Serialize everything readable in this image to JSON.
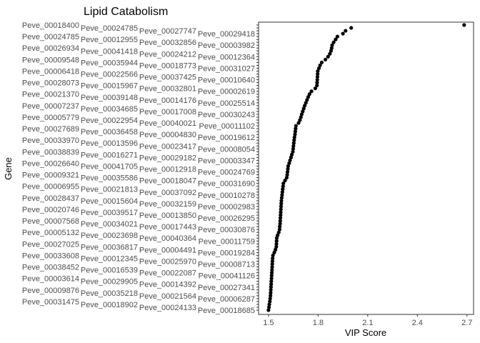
{
  "chart_data": {
    "type": "scatter",
    "title": "Lipid Catabolism",
    "xlabel": "VIP Score",
    "ylabel": "Gene",
    "xlim": [
      1.44,
      2.74
    ],
    "xticks": [
      1.5,
      1.8,
      2.1,
      2.4,
      2.7
    ],
    "xtick_labels": [
      "1.5",
      "1.8",
      "2.1",
      "2.4",
      "2.7"
    ],
    "grid": false,
    "point_color": "#000000",
    "genes": [
      "Peve_00018685",
      "Peve_00024133",
      "Peve_00018902",
      "Peve_00031475",
      "Peve_00006287",
      "Peve_00021564",
      "Peve_00035218",
      "Peve_00009876",
      "Peve_00027341",
      "Peve_00014392",
      "Peve_00029905",
      "Peve_00003614",
      "Peve_00041126",
      "Peve_00022087",
      "Peve_00016539",
      "Peve_00038452",
      "Peve_00008713",
      "Peve_00025970",
      "Peve_00012345",
      "Peve_00033608",
      "Peve_00019284",
      "Peve_00004491",
      "Peve_00036817",
      "Peve_00027025",
      "Peve_00011759",
      "Peve_00040364",
      "Peve_00023698",
      "Peve_00005132",
      "Peve_00030876",
      "Peve_00017443",
      "Peve_00034021",
      "Peve_00007568",
      "Peve_00026295",
      "Peve_00013850",
      "Peve_00039517",
      "Peve_00020746",
      "Peve_00002983",
      "Peve_00032159",
      "Peve_00015604",
      "Peve_00028437",
      "Peve_00010278",
      "Peve_00037092",
      "Peve_00021813",
      "Peve_00006955",
      "Peve_00031690",
      "Peve_00018047",
      "Peve_00035586",
      "Peve_00009321",
      "Peve_00024769",
      "Peve_00012918",
      "Peve_00041705",
      "Peve_00026640",
      "Peve_00003347",
      "Peve_00029182",
      "Peve_00016271",
      "Peve_00038839",
      "Peve_00008054",
      "Peve_00023417",
      "Peve_00013596",
      "Peve_00033970",
      "Peve_00019612",
      "Peve_00004830",
      "Peve_00036458",
      "Peve_00027689",
      "Peve_00011102",
      "Peve_00040021",
      "Peve_00022954",
      "Peve_00005779",
      "Peve_00030243",
      "Peve_00017008",
      "Peve_00034685",
      "Peve_00007237",
      "Peve_00025514",
      "Peve_00014176",
      "Peve_00039148",
      "Peve_00021370",
      "Peve_00002619",
      "Peve_00032801",
      "Peve_00015967",
      "Peve_00028073",
      "Peve_00010640",
      "Peve_00037425",
      "Peve_00022566",
      "Peve_00006418",
      "Peve_00031027",
      "Peve_00018773",
      "Peve_00035944",
      "Peve_00009548",
      "Peve_00012364",
      "Peve_00024212",
      "Peve_00041418",
      "Peve_00026934",
      "Peve_00003982",
      "Peve_00032856",
      "Peve_00012955",
      "Peve_00024785",
      "Peve_00029418",
      "Peve_00027747",
      "Peve_00024785",
      "Peve_00018400"
    ],
    "values": [
      1.5,
      1.503,
      1.505,
      1.508,
      1.51,
      1.512,
      1.513,
      1.514,
      1.515,
      1.516,
      1.517,
      1.518,
      1.519,
      1.52,
      1.521,
      1.522,
      1.523,
      1.524,
      1.525,
      1.527,
      1.535,
      1.542,
      1.547,
      1.548,
      1.549,
      1.55,
      1.555,
      1.562,
      1.567,
      1.568,
      1.57,
      1.571,
      1.572,
      1.573,
      1.574,
      1.575,
      1.576,
      1.577,
      1.578,
      1.58,
      1.582,
      1.584,
      1.586,
      1.588,
      1.59,
      1.6,
      1.61,
      1.613,
      1.615,
      1.617,
      1.619,
      1.625,
      1.63,
      1.636,
      1.641,
      1.647,
      1.649,
      1.651,
      1.653,
      1.655,
      1.657,
      1.66,
      1.662,
      1.664,
      1.666,
      1.682,
      1.69,
      1.696,
      1.701,
      1.707,
      1.713,
      1.719,
      1.726,
      1.733,
      1.74,
      1.748,
      1.76,
      1.783,
      1.793,
      1.794,
      1.795,
      1.796,
      1.797,
      1.798,
      1.805,
      1.812,
      1.822,
      1.844,
      1.86,
      1.871,
      1.878,
      1.882,
      1.885,
      1.894,
      1.906,
      1.917,
      1.95,
      1.966,
      2.0,
      2.683
    ]
  }
}
